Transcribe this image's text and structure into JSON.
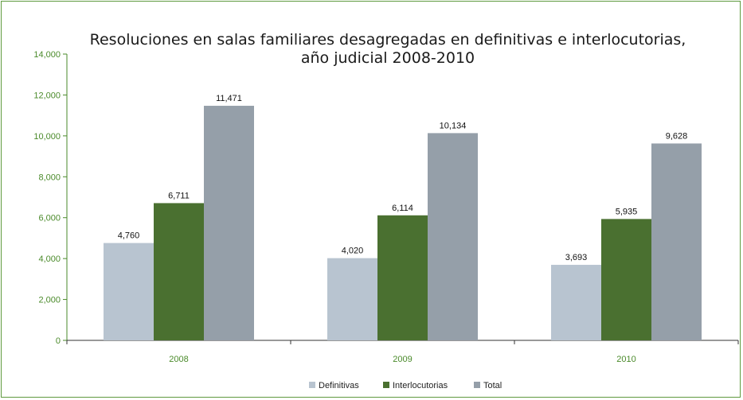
{
  "chart_data": {
    "type": "bar",
    "title_line1": "Resoluciones en salas familiares desagregadas en definitivas e interlocutorias,",
    "title_line2": "año judicial 2008-2010",
    "xlabel": "",
    "ylabel": "",
    "categories": [
      "2008",
      "2009",
      "2010"
    ],
    "series": [
      {
        "name": "Definitivas",
        "color": "#b8c4d0",
        "values": [
          4760,
          4020,
          3693
        ],
        "labels": [
          "4,760",
          "4,020",
          "3,693"
        ]
      },
      {
        "name": "Interlocutorias",
        "color": "#4a7030",
        "values": [
          6711,
          6114,
          5935
        ],
        "labels": [
          "6,711",
          "6,114",
          "5,935"
        ]
      },
      {
        "name": "Total",
        "color": "#959fa9",
        "values": [
          11471,
          10134,
          9628
        ],
        "labels": [
          "11,471",
          "10,134",
          "9,628"
        ]
      }
    ],
    "ylim": [
      0,
      14000
    ],
    "yticks": [
      0,
      2000,
      4000,
      6000,
      8000,
      10000,
      12000,
      14000
    ],
    "ytick_labels": [
      "0",
      "2,000",
      "4,000",
      "6,000",
      "8,000",
      "10,000",
      "12,000",
      "14,000"
    ],
    "grid": false,
    "legend_position": "bottom",
    "axis_color": "#4a8a2a",
    "frame_color": "#5f9a3e"
  }
}
